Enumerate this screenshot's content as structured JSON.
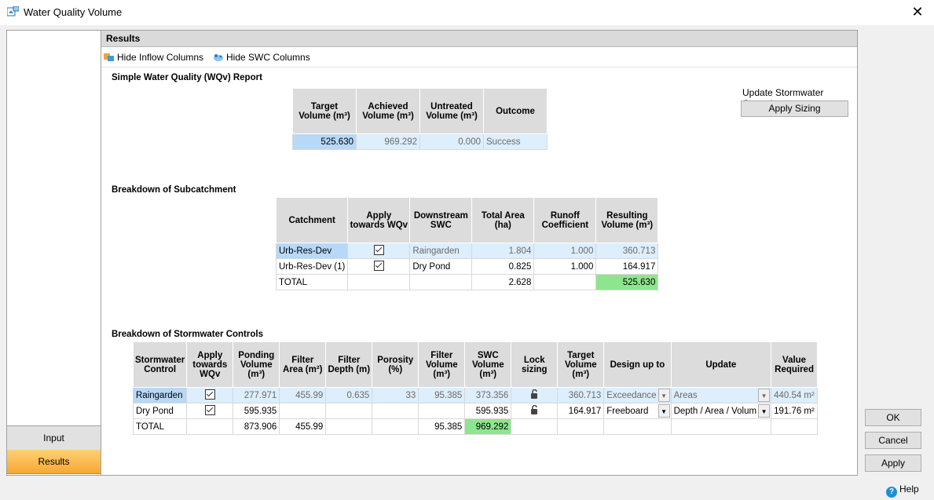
{
  "window": {
    "title": "Water Quality Volume",
    "close_glyph": "✕",
    "app_icon": "water-quality-icon"
  },
  "nav": {
    "input_label": "Input",
    "results_label": "Results"
  },
  "results_header": "Results",
  "toolbar": {
    "hide_inflow": "Hide Inflow Columns",
    "hide_swc": "Hide SWC Columns"
  },
  "report": {
    "title": "Simple Water Quality (WQv) Report",
    "headers": [
      "Target Volume (m³)",
      "Achieved Volume (m³)",
      "Untreated Volume (m³)",
      "Outcome"
    ],
    "row": [
      "525.630",
      "969.292",
      "0.000",
      "Success"
    ]
  },
  "update_controls": {
    "label": "Update Stormwater Controls",
    "button": "Apply Sizing"
  },
  "subcatchment": {
    "title": "Breakdown of Subcatchment",
    "headers": [
      "Catchment",
      "Apply towards WQv",
      "Downstream SWC",
      "Total Area (ha)",
      "Runoff Coefficient",
      "Resulting Volume (m³)"
    ],
    "rows": [
      {
        "catchment": "Urb-Res-Dev",
        "apply": true,
        "swc": "Raingarden",
        "area": "1.804",
        "coef": "1.000",
        "volume": "360.713"
      },
      {
        "catchment": "Urb-Res-Dev (1)",
        "apply": true,
        "swc": "Dry Pond",
        "area": "0.825",
        "coef": "1.000",
        "volume": "164.917"
      }
    ],
    "total": {
      "label": "TOTAL",
      "area": "2.628",
      "volume": "525.630"
    }
  },
  "swc": {
    "title": "Breakdown of Stormwater Controls",
    "headers": [
      "Stormwater Control",
      "Apply towards WQv",
      "Ponding Volume (m³)",
      "Filter Area (m²)",
      "Filter Depth (m)",
      "Porosity (%)",
      "Filter Volume (m³)",
      "SWC Volume (m³)",
      "Lock sizing",
      "Target Volume (m³)",
      "Design up to",
      "Update",
      "Value Required"
    ],
    "rows": [
      {
        "name": "Raingarden",
        "apply": true,
        "ponding": "277.971",
        "farea": "455.99",
        "fdepth": "0.635",
        "porosity": "33",
        "fvol": "95.385",
        "swcvol": "373.356",
        "target": "360.713",
        "design": "Exceedance",
        "update": "Areas",
        "value": "440.54 m²"
      },
      {
        "name": "Dry Pond",
        "apply": true,
        "ponding": "595.935",
        "farea": "",
        "fdepth": "",
        "porosity": "",
        "fvol": "",
        "swcvol": "595.935",
        "target": "164.917",
        "design": "Freeboard",
        "update": "Depth / Area / Volum",
        "value": "191.76 m²"
      }
    ],
    "total": {
      "label": "TOTAL",
      "ponding": "873.906",
      "farea": "455.99",
      "fvol": "95.385",
      "swcvol": "969.292"
    }
  },
  "buttons": {
    "ok": "OK",
    "cancel": "Cancel",
    "apply": "Apply",
    "help": "Help"
  }
}
